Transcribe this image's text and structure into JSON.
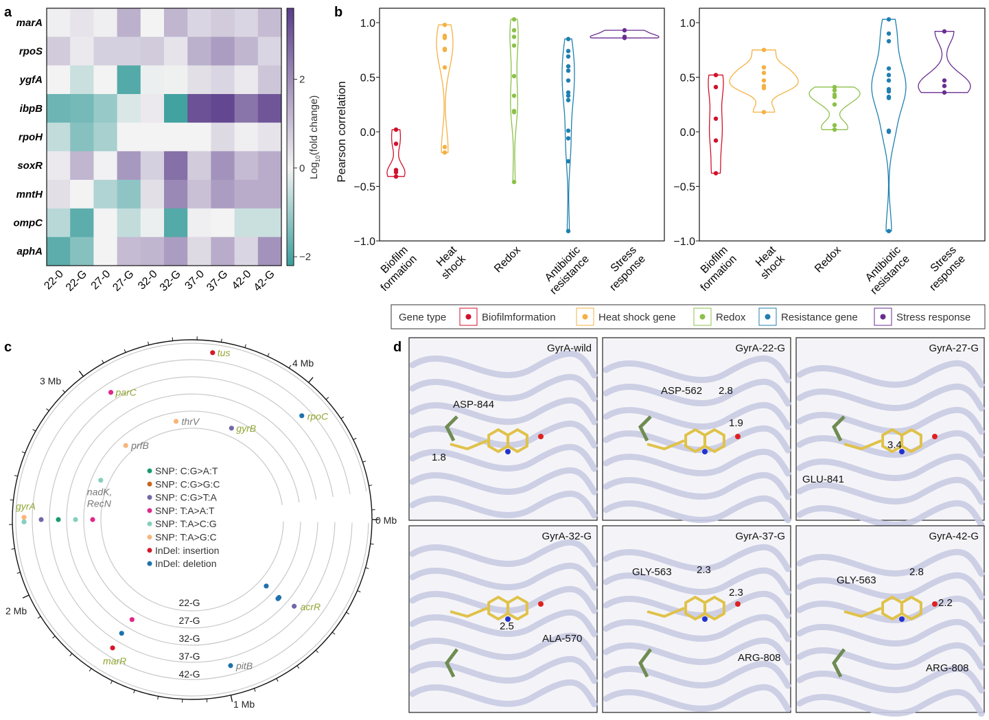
{
  "panel_labels": {
    "a": "a",
    "b": "b",
    "c": "c",
    "d": "d"
  },
  "chart_data": [
    {
      "type": "heatmap",
      "rows": [
        "marA",
        "rpoS",
        "ygfA",
        "ibpB",
        "rpoH",
        "soxR",
        "mntH",
        "ompC",
        "aphA"
      ],
      "columns": [
        "22-0",
        "22-G",
        "27-0",
        "27-G",
        "32-0",
        "32-G",
        "37-0",
        "37-G",
        "42-0",
        "42-G"
      ],
      "values": [
        [
          0.1,
          0.3,
          0.1,
          1.3,
          0.0,
          1.2,
          0.6,
          0.8,
          0.6,
          1.1
        ],
        [
          0.8,
          0.2,
          0.7,
          0.7,
          0.8,
          0.3,
          1.3,
          1.7,
          1.2,
          0.6
        ],
        [
          0.0,
          -0.5,
          0.0,
          -1.9,
          -0.1,
          -0.05,
          0.4,
          0.6,
          0.2,
          0.9
        ],
        [
          -1.6,
          -1.5,
          -1.1,
          -0.3,
          0.2,
          -2.1,
          3.2,
          3.4,
          2.5,
          3.1
        ],
        [
          -0.6,
          -1.3,
          -0.9,
          0.0,
          0.0,
          0.0,
          0.0,
          0.5,
          0.1,
          0.3
        ],
        [
          0.2,
          1.2,
          0.05,
          1.8,
          0.7,
          2.6,
          0.8,
          1.9,
          1.1,
          1.4
        ],
        [
          0.4,
          0.0,
          -0.8,
          -1.2,
          0.4,
          2.1,
          1.0,
          1.7,
          1.4,
          1.4
        ],
        [
          -0.7,
          -1.8,
          0.0,
          -0.6,
          -0.1,
          -1.9,
          0.1,
          0.0,
          -0.5,
          -0.5
        ],
        [
          -1.8,
          -1.3,
          0.0,
          1.1,
          1.2,
          1.7,
          0.5,
          1.4,
          0.6,
          1.9
        ]
      ],
      "colorbar": {
        "range": [
          -2.2,
          3.6
        ],
        "ticks": [
          2,
          0,
          -2
        ],
        "tick_labels": [
          "2",
          "0",
          "−2"
        ],
        "label_base": "Log",
        "label_sub": "10",
        "label_rest": "(fold change)",
        "colors": {
          "negative": "#3a9e9c",
          "zero": "#f3f3f3",
          "positive": "#5b3d8a"
        }
      }
    },
    {
      "type": "violin",
      "ylabel": "Pearson correlation",
      "ylim": [
        -1.0,
        1.1
      ],
      "yticks": [
        1.0,
        0.5,
        0.0,
        -0.5,
        -1.0
      ],
      "ytick_labels": [
        "1.0",
        "0.5",
        "0.0",
        "−0.5",
        "−1.0"
      ],
      "categories": [
        [
          "Biofilm",
          "formation"
        ],
        [
          "Heat",
          "shock"
        ],
        [
          "Redox"
        ],
        [
          "Antibiotic",
          "resistance"
        ],
        [
          "Stress",
          "response"
        ]
      ],
      "series": [
        {
          "values": [
            0.02,
            -0.11,
            -0.35,
            -0.37,
            -0.41
          ]
        },
        {
          "values": [
            0.98,
            0.88,
            0.86,
            0.76,
            0.75,
            0.59,
            -0.14,
            -0.19
          ]
        },
        {
          "values": [
            1.03,
            0.93,
            0.87,
            0.79,
            0.51,
            0.33,
            0.19,
            0.18,
            -0.46
          ]
        },
        {
          "values": [
            0.85,
            0.74,
            0.69,
            0.6,
            0.56,
            0.47,
            0.36,
            0.33,
            0.29,
            0.01,
            -0.06,
            -0.27,
            -0.91
          ]
        },
        {
          "values": [
            0.93,
            0.87,
            0.86
          ]
        }
      ]
    },
    {
      "type": "violin",
      "ylim": [
        -1.0,
        1.1
      ],
      "yticks": [
        1.0,
        0.5,
        0.0,
        -0.5,
        -1.0
      ],
      "ytick_labels": [
        "1.0",
        "0.5",
        "0.0",
        "−0.5",
        "−1.0"
      ],
      "categories": [
        [
          "Biofilm",
          "formation"
        ],
        [
          "Heat",
          "shock"
        ],
        [
          "Redox"
        ],
        [
          "Antibiotic",
          "resistance"
        ],
        [
          "Stress",
          "response"
        ]
      ],
      "series": [
        {
          "values": [
            0.52,
            0.41,
            0.12,
            -0.08,
            -0.38
          ]
        },
        {
          "values": [
            0.75,
            0.59,
            0.54,
            0.47,
            0.42,
            0.4,
            0.18
          ]
        },
        {
          "values": [
            0.41,
            0.38,
            0.34,
            0.32,
            0.25,
            0.06,
            0.02
          ]
        },
        {
          "values": [
            1.03,
            0.9,
            0.83,
            0.58,
            0.52,
            0.47,
            0.39,
            0.37,
            0.32,
            0.31,
            0.01,
            0.0,
            -0.91
          ]
        },
        {
          "values": [
            0.92,
            0.47,
            0.42,
            0.36
          ]
        }
      ]
    },
    {
      "type": "circular-genome",
      "axis_labels": [
        "0 Mb",
        "1 Mb",
        "2 Mb",
        "3 Mb",
        "4 Mb"
      ],
      "genome_length_mb": 4.64,
      "samples": [
        "22-G",
        "27-G",
        "32-G",
        "37-G",
        "42-G"
      ],
      "mutation_types": [
        {
          "name": "SNP: C:G>A:T",
          "color": "#1a9973"
        },
        {
          "name": "SNP: C:G>G:C",
          "color": "#c8651b"
        },
        {
          "name": "SNP: C:G>T:A",
          "color": "#7467a8"
        },
        {
          "name": "SNP: T:A>A:T",
          "color": "#e0288a"
        },
        {
          "name": "SNP: T:A>C:G",
          "color": "#86cfbe"
        },
        {
          "name": "SNP: T:A>G:C",
          "color": "#f7b57a"
        },
        {
          "name": "InDel: insertion",
          "color": "#d3182a"
        },
        {
          "name": "InDel: deletion",
          "color": "#1f72ab"
        }
      ],
      "mutations": [
        {
          "gene": "tus",
          "pos_mb": 3.57,
          "sample": "42-G",
          "type": 6,
          "resistance": true
        },
        {
          "gene": "parC",
          "pos_mb": 3.06,
          "sample": "37-G",
          "type": 3,
          "resistance": true
        },
        {
          "gene": "rpoC",
          "pos_mb": 4.08,
          "sample": "37-G",
          "type": 7,
          "resistance": true
        },
        {
          "gene": "thrV",
          "pos_mb": 3.36,
          "sample": "22-G",
          "type": 5,
          "resistance": false
        },
        {
          "gene": "gyrB",
          "pos_mb": 3.78,
          "sample": "22-G",
          "type": 2,
          "resistance": true
        },
        {
          "gene": "prfB",
          "pos_mb": 2.94,
          "sample": "22-G",
          "type": 5,
          "resistance": false
        },
        {
          "gene": "nadK,\nRecN",
          "pos_mb": 2.62,
          "sample": "22-G",
          "type": 4,
          "resistance": false
        },
        {
          "gene": "gyrA",
          "pos_mb": 2.31,
          "sample": "42-G",
          "type": 4,
          "resistance": true
        },
        {
          "gene": "",
          "pos_mb": 2.33,
          "sample": "42-G",
          "type": 5
        },
        {
          "gene": "",
          "pos_mb": 2.32,
          "sample": "37-G",
          "type": 2
        },
        {
          "gene": "",
          "pos_mb": 2.32,
          "sample": "32-G",
          "type": 0
        },
        {
          "gene": "",
          "pos_mb": 2.32,
          "sample": "27-G",
          "type": 4
        },
        {
          "gene": "",
          "pos_mb": 2.32,
          "sample": "22-G",
          "type": 3
        },
        {
          "gene": "acrR",
          "pos_mb": 0.52,
          "sample": "32-G",
          "type": 2,
          "resistance": true
        },
        {
          "gene": "",
          "pos_mb": 0.54,
          "sample": "22-G",
          "type": 7
        },
        {
          "gene": "",
          "pos_mb": 0.54,
          "sample": "27-G",
          "type": 7
        },
        {
          "gene": "",
          "pos_mb": 0.55,
          "sample": "27-G",
          "type": 7
        },
        {
          "gene": "",
          "pos_mb": 1.56,
          "sample": "27-G",
          "type": 3
        },
        {
          "gene": "",
          "pos_mb": 1.57,
          "sample": "32-G",
          "type": 7
        },
        {
          "gene": "marR",
          "pos_mb": 1.57,
          "sample": "37-G",
          "type": 6,
          "resistance": true
        },
        {
          "gene": "pitB",
          "pos_mb": 0.97,
          "sample": "37-G",
          "type": 7,
          "resistance": false
        }
      ]
    }
  ],
  "legend_b": {
    "title": "Gene type",
    "items": [
      {
        "label": "Biofilmformation",
        "color": "#d0112b"
      },
      {
        "label": "Heat shock gene",
        "color": "#f4b142"
      },
      {
        "label": "Redox",
        "color": "#8cc04a"
      },
      {
        "label": "Resistance gene",
        "color": "#1f7fb0"
      },
      {
        "label": "Stress response",
        "color": "#6a2c91"
      }
    ]
  },
  "panel_d": {
    "boxes": [
      {
        "title": "GyrA-wild",
        "labels": [
          "ASP-844",
          "1.8"
        ]
      },
      {
        "title": "GyrA-22-G",
        "labels": [
          "ASP-562",
          "2.8",
          "1.9"
        ]
      },
      {
        "title": "GyrA-27-G",
        "labels": [
          "3.4",
          "GLU-841"
        ]
      },
      {
        "title": "GyrA-32-G",
        "labels": [
          "2.5",
          "ALA-570"
        ]
      },
      {
        "title": "GyrA-37-G",
        "labels": [
          "GLY-563",
          "2.3",
          "2.3",
          "ARG-808"
        ]
      },
      {
        "title": "GyrA-42-G",
        "labels": [
          "GLY-563",
          "2.8",
          "2.2",
          "ARG-808"
        ]
      }
    ]
  }
}
